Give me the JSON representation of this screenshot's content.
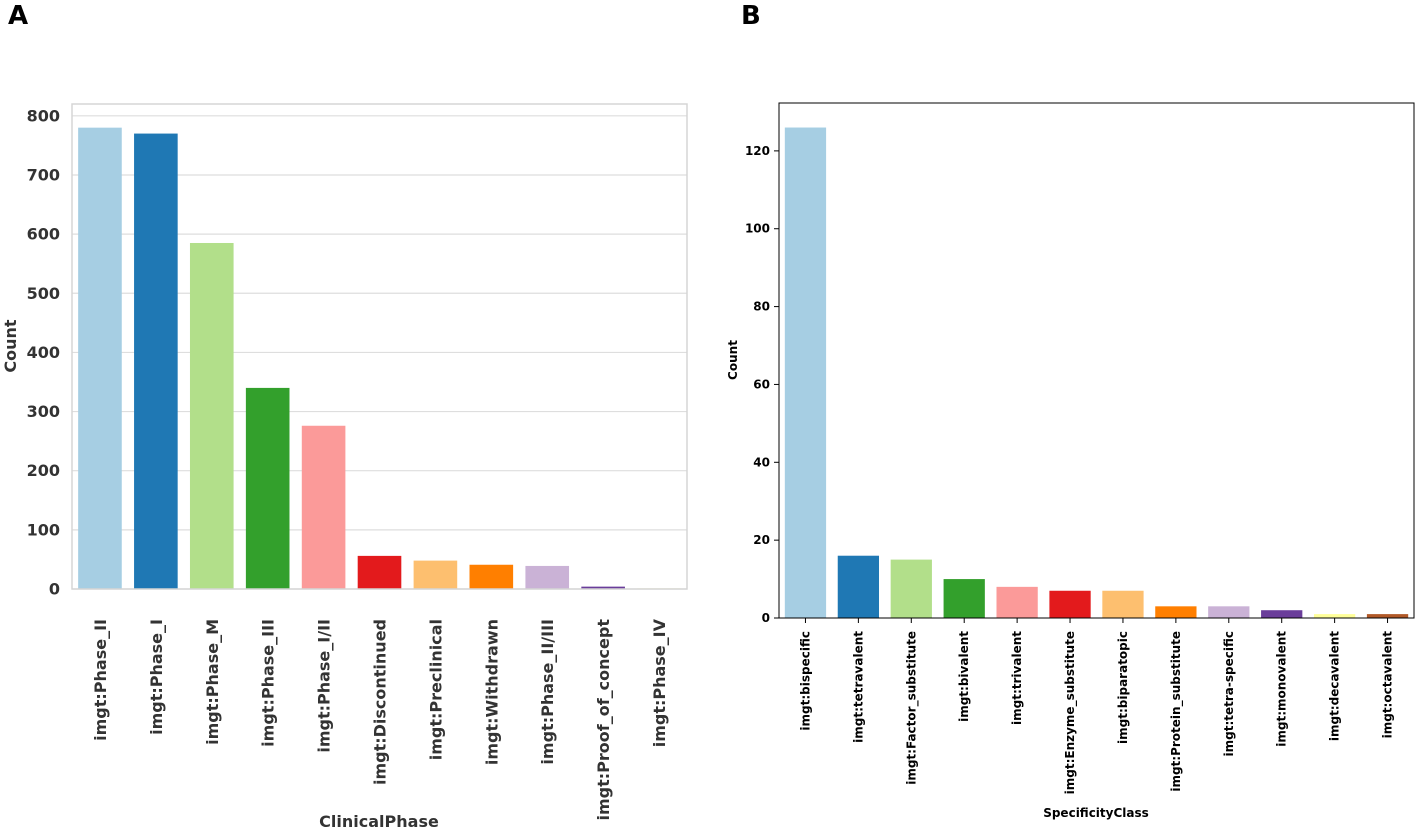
{
  "panels": {
    "a": "A",
    "b": "B"
  },
  "chart_data": [
    {
      "type": "bar",
      "panel": "A",
      "title": "",
      "xlabel": "ClinicalPhase",
      "ylabel": "Count",
      "ylim": [
        0,
        820
      ],
      "yticks": [
        0,
        100,
        200,
        300,
        400,
        500,
        600,
        700,
        800
      ],
      "grid": true,
      "categories": [
        "imgt:Phase_II",
        "imgt:Phase_I",
        "imgt:Phase_M",
        "imgt:Phase_III",
        "imgt:Phase_I/II",
        "imgt:Discontinued",
        "imgt:Preclinical",
        "imgt:Withdrawn",
        "imgt:Phase_II/III",
        "imgt:Proof_of_concept",
        "imgt:Phase_IV"
      ],
      "values": [
        780,
        770,
        585,
        340,
        276,
        56,
        48,
        41,
        39,
        4,
        1
      ],
      "colors": [
        "#a6cee3",
        "#1f78b4",
        "#b2df8a",
        "#33a02c",
        "#fb9a99",
        "#e31a1c",
        "#fdbf6f",
        "#ff7f00",
        "#cab2d6",
        "#6a3d9a",
        "#ffff99"
      ]
    },
    {
      "type": "bar",
      "panel": "B",
      "title": "",
      "xlabel": "SpecificityClass",
      "ylabel": "Count",
      "ylim": [
        0,
        132.3
      ],
      "yticks": [
        0,
        20,
        40,
        60,
        80,
        100,
        120
      ],
      "grid": false,
      "categories": [
        "imgt:bispecific",
        "imgt:tetravalent",
        "imgt:Factor_substitute",
        "imgt:bivalent",
        "imgt:trivalent",
        "imgt:Enzyme_substitute",
        "imgt:biparatopic",
        "imgt:Protein_substitute",
        "imgt:tetra-specific",
        "imgt:monovalent",
        "imgt:decavalent",
        "imgt:octavalent"
      ],
      "values": [
        126,
        16,
        15,
        10,
        8,
        7,
        7,
        3,
        3,
        2,
        1,
        1
      ],
      "colors": [
        "#a6cee3",
        "#1f78b4",
        "#b2df8a",
        "#33a02c",
        "#fb9a99",
        "#e31a1c",
        "#fdbf6f",
        "#ff7f00",
        "#cab2d6",
        "#6a3d9a",
        "#ffff99",
        "#b15928"
      ]
    }
  ]
}
